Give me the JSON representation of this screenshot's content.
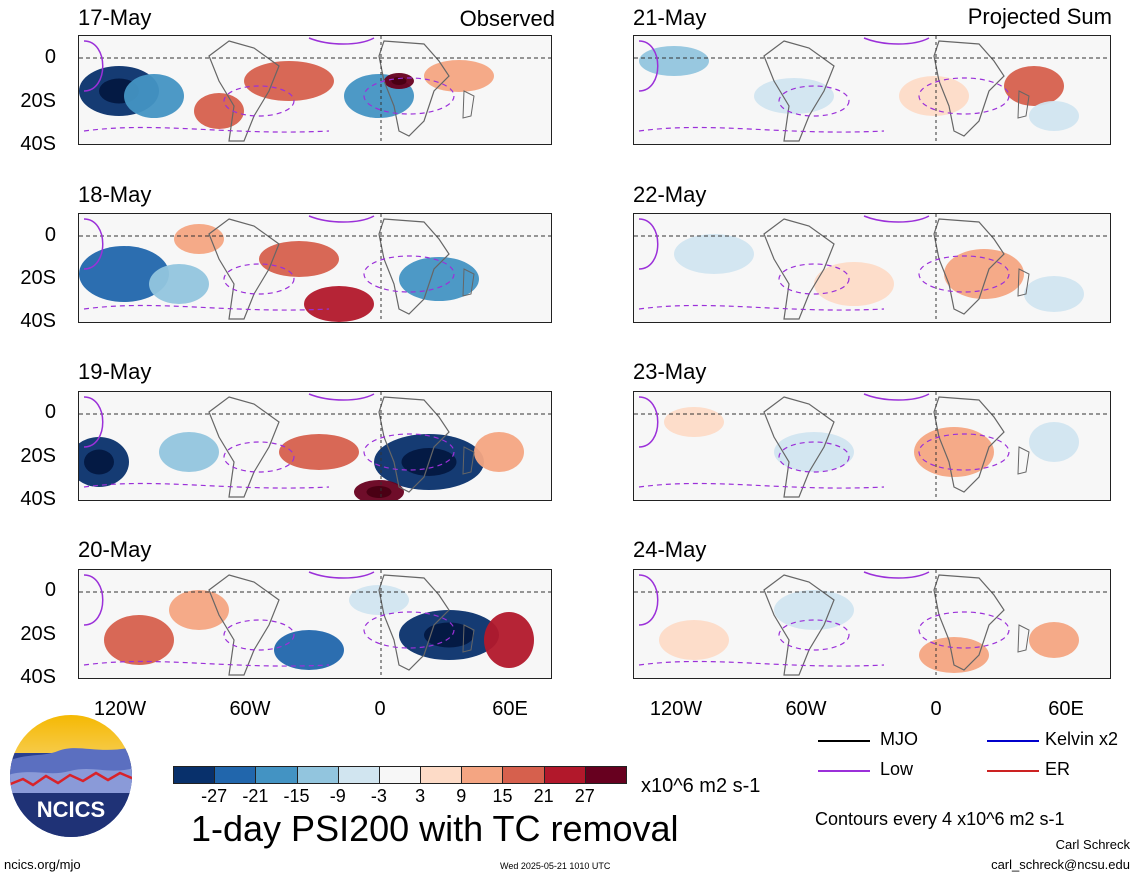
{
  "header": {
    "left": "Observed",
    "right": "Projected Sum"
  },
  "observed_dates": [
    "17-May",
    "18-May",
    "19-May",
    "20-May"
  ],
  "projected_dates": [
    "21-May",
    "22-May",
    "23-May",
    "24-May"
  ],
  "y_ticks": [
    "0",
    "20S",
    "40S"
  ],
  "x_ticks": [
    "120W",
    "60W",
    "0",
    "60E"
  ],
  "colorbar": {
    "colors": [
      "#08306b",
      "#2166ac",
      "#4393c3",
      "#92c5de",
      "#d1e5f0",
      "#f7f7f7",
      "#fddbc7",
      "#f4a582",
      "#d6604d",
      "#b2182b",
      "#67001f"
    ],
    "ticks": [
      "-27",
      "-21",
      "-15",
      "-9",
      "-3",
      "3",
      "9",
      "15",
      "21",
      "27"
    ],
    "unit": "x10^6 m2 s-1"
  },
  "title": "1-day PSI200 with TC removal",
  "legend": {
    "items": [
      {
        "label": "MJO",
        "color": "#000000"
      },
      {
        "label": "Kelvin x2",
        "color": "#0000cc"
      },
      {
        "label": "Low",
        "color": "#9b30d9"
      },
      {
        "label": "ER",
        "color": "#cc2222"
      }
    ]
  },
  "contour_note": "Contours every 4 x10^6 m2 s-1",
  "author": "Carl Schreck",
  "email": "carl_schreck@ncsu.edu",
  "site": "ncics.org/mjo",
  "timestamp": "Wed 2025-05-21 1010 UTC",
  "logo_text": "NCICS",
  "chart_data": {
    "type": "heatmap",
    "title": "1-day PSI200 with TC removal",
    "xlabel": "",
    "ylabel": "",
    "x_ticks": [
      "120W",
      "60W",
      "0",
      "60E"
    ],
    "y_ticks": [
      "0",
      "20S",
      "40S"
    ],
    "xlim": [
      "150W",
      "75E"
    ],
    "ylim": [
      "40S",
      "10N"
    ],
    "color_levels": [
      -27,
      -21,
      -15,
      -9,
      -3,
      3,
      9,
      15,
      21,
      27
    ],
    "panels": [
      {
        "date": "17-May",
        "kind": "Observed",
        "max": 27,
        "min": -27
      },
      {
        "date": "18-May",
        "kind": "Observed",
        "max": 21,
        "min": -27
      },
      {
        "date": "19-May",
        "kind": "Observed",
        "max": 21,
        "min": -27
      },
      {
        "date": "20-May",
        "kind": "Observed",
        "max": 27,
        "min": -27
      },
      {
        "date": "21-May",
        "kind": "Projected Sum",
        "max": 15,
        "min": -9
      },
      {
        "date": "22-May",
        "kind": "Projected Sum",
        "max": 9,
        "min": -9
      },
      {
        "date": "23-May",
        "kind": "Projected Sum",
        "max": 9,
        "min": -9
      },
      {
        "date": "24-May",
        "kind": "Projected Sum",
        "max": 15,
        "min": -9
      }
    ]
  }
}
